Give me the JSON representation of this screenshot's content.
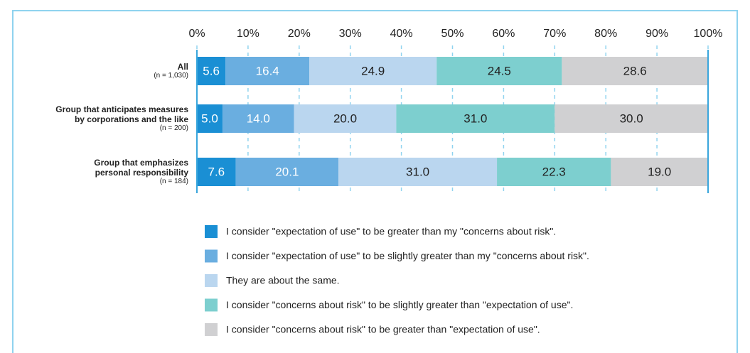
{
  "chart_data": {
    "type": "stacked_bar_horizontal",
    "categories": [
      "All",
      "Group that anticipates measures\nby corporations and the like",
      "Group that emphasizes\npersonal responsibility"
    ],
    "category_notes": [
      "(n = 1,030)",
      "(n = 200)",
      "(n = 184)"
    ],
    "series": [
      {
        "name": "I consider \"expectation of use\" to be greater than my \"concerns about risk\".",
        "color": "#1a8fd4",
        "label_color": "#ffffff",
        "values": [
          5.6,
          5.0,
          7.6
        ],
        "value_labels": [
          "5.6",
          "5.0",
          "7.6"
        ]
      },
      {
        "name": "I consider \"expectation of use\" to be slightly greater than my \"concerns about risk\".",
        "color": "#6aaee0",
        "label_color": "#ffffff",
        "values": [
          16.4,
          14.0,
          20.1
        ],
        "value_labels": [
          "16.4",
          "14.0",
          "20.1"
        ]
      },
      {
        "name": "They are about the same.",
        "color": "#bad6ef",
        "label_color": "#222222",
        "values": [
          24.9,
          20.0,
          31.0
        ],
        "value_labels": [
          "24.9",
          "20.0",
          "31.0"
        ]
      },
      {
        "name": "I consider \"concerns about risk\" to be slightly greater than \"expectation of use\".",
        "color": "#7dcfcf",
        "label_color": "#222222",
        "values": [
          24.5,
          31.0,
          22.3
        ],
        "value_labels": [
          "24.5",
          "31.0",
          "22.3"
        ]
      },
      {
        "name": "I consider \"concerns about risk\" to be greater than \"expectation of use\".",
        "color": "#d0d0d2",
        "label_color": "#222222",
        "values": [
          28.6,
          30.0,
          19.0
        ],
        "value_labels": [
          "28.6",
          "30.0",
          "19.0"
        ]
      }
    ],
    "xlim": [
      0,
      100
    ],
    "xticks": [
      {
        "value": 0,
        "label": "0%"
      },
      {
        "value": 10,
        "label": "10%"
      },
      {
        "value": 20,
        "label": "20%"
      },
      {
        "value": 30,
        "label": "30%"
      },
      {
        "value": 40,
        "label": "40%"
      },
      {
        "value": 50,
        "label": "50%"
      },
      {
        "value": 60,
        "label": "60%"
      },
      {
        "value": 70,
        "label": "70%"
      },
      {
        "value": 80,
        "label": "80%"
      },
      {
        "value": 90,
        "label": "90%"
      },
      {
        "value": 100,
        "label": "100%"
      }
    ],
    "grid": true
  }
}
